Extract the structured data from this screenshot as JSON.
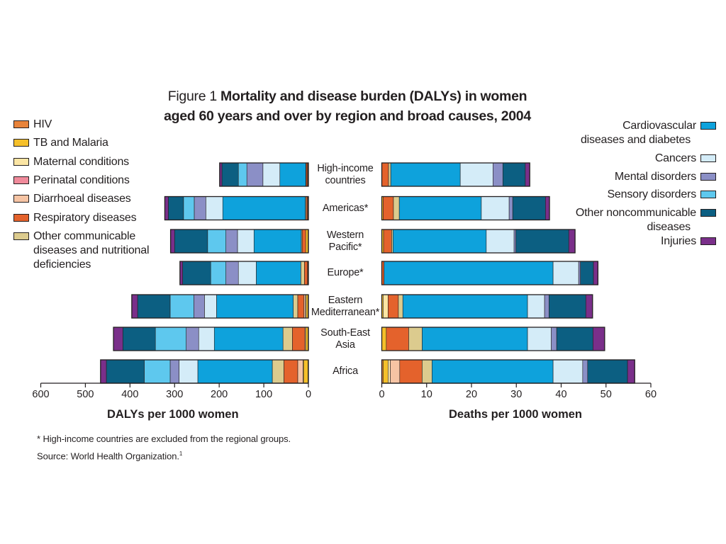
{
  "title": {
    "prefix": "Figure 1",
    "line1": "Mortality and disease burden (DALYs) in women",
    "line2": "aged 60 years and over by region and broad causes, 2004"
  },
  "legend_left": [
    {
      "label": "HIV",
      "color": "#e8833a"
    },
    {
      "label": "TB and Malaria",
      "color": "#f5c02a"
    },
    {
      "label": "Maternal conditions",
      "color": "#fbe5a4"
    },
    {
      "label": "Perinatal conditions",
      "color": "#f08a9b"
    },
    {
      "label": "Diarrhoeal diseases",
      "color": "#f6c4a4"
    },
    {
      "label": "Respiratory diseases",
      "color": "#e4622c"
    },
    {
      "label": "Other communicable diseases and nutritional deficiencies",
      "lines": [
        "Other communicable",
        "diseases and nutritional",
        "deficiencies"
      ],
      "color": "#dccb8e"
    }
  ],
  "legend_right": [
    {
      "label": "Cardiovascular diseases and diabetes",
      "lines": [
        "Cardiovascular",
        "diseases and diabetes"
      ],
      "color": "#0ea2dc"
    },
    {
      "label": "Cancers",
      "lines": [
        "Cancers"
      ],
      "color": "#d4ecf8"
    },
    {
      "label": "Mental disorders",
      "lines": [
        "Mental disorders"
      ],
      "color": "#8b8fc6"
    },
    {
      "label": "Sensory disorders",
      "lines": [
        "Sensory disorders"
      ],
      "color": "#5ec8ee"
    },
    {
      "label": "Other noncommunicable diseases",
      "lines": [
        "Other noncommunicable",
        "diseases"
      ],
      "color": "#0c5f82"
    },
    {
      "label": "Injuries",
      "lines": [
        "Injuries"
      ],
      "color": "#7a2f8a"
    }
  ],
  "chart_data": {
    "type": "bar",
    "orientation": "horizontal",
    "layout": "back-to-back stacked",
    "categories": [
      [
        "High-income",
        "countries"
      ],
      [
        "Americas*"
      ],
      [
        "Western",
        "Pacific*"
      ],
      [
        "Europe*"
      ],
      [
        "Eastern",
        "Mediterranean*"
      ],
      [
        "South-East",
        "Asia"
      ],
      [
        "Africa"
      ]
    ],
    "causes": [
      "HIV",
      "TB and Malaria",
      "Maternal conditions",
      "Perinatal conditions",
      "Diarrhoeal diseases",
      "Respiratory diseases",
      "Other communicable diseases and nutritional deficiencies",
      "Cardiovascular diseases and diabetes",
      "Cancers",
      "Mental disorders",
      "Sensory disorders",
      "Other noncommunicable diseases",
      "Injuries"
    ],
    "left_panel": {
      "xlabel": "DALYs per 1000 women",
      "xlim": [
        600,
        0
      ],
      "ticks": [
        600,
        500,
        400,
        300,
        200,
        100,
        0
      ],
      "series": [
        {
          "category": "High-income countries",
          "segments": [
            {
              "cause": "HIV",
              "value": 1
            },
            {
              "cause": "TB and Malaria",
              "value": 1
            },
            {
              "cause": "Respiratory diseases",
              "value": 3
            },
            {
              "cause": "Other communicable diseases and nutritional deficiencies",
              "value": 1
            },
            {
              "cause": "Cardiovascular diseases and diabetes",
              "value": 58
            },
            {
              "cause": "Cancers",
              "value": 38
            },
            {
              "cause": "Mental disorders",
              "value": 36
            },
            {
              "cause": "Sensory disorders",
              "value": 19
            },
            {
              "cause": "Other noncommunicable diseases",
              "value": 37
            },
            {
              "cause": "Injuries",
              "value": 5
            }
          ]
        },
        {
          "category": "Americas*",
          "segments": [
            {
              "cause": "HIV",
              "value": 1
            },
            {
              "cause": "TB and Malaria",
              "value": 1
            },
            {
              "cause": "Respiratory diseases",
              "value": 3
            },
            {
              "cause": "Other communicable diseases and nutritional deficiencies",
              "value": 2
            },
            {
              "cause": "Cardiovascular diseases and diabetes",
              "value": 185
            },
            {
              "cause": "Cancers",
              "value": 38
            },
            {
              "cause": "Mental disorders",
              "value": 26
            },
            {
              "cause": "Sensory disorders",
              "value": 24
            },
            {
              "cause": "Other noncommunicable diseases",
              "value": 34
            },
            {
              "cause": "Injuries",
              "value": 8
            }
          ]
        },
        {
          "category": "Western Pacific*",
          "segments": [
            {
              "cause": "HIV",
              "value": 1
            },
            {
              "cause": "TB and Malaria",
              "value": 5
            },
            {
              "cause": "Respiratory diseases",
              "value": 8
            },
            {
              "cause": "Other communicable diseases and nutritional deficiencies",
              "value": 2
            },
            {
              "cause": "Cardiovascular diseases and diabetes",
              "value": 106
            },
            {
              "cause": "Cancers",
              "value": 37
            },
            {
              "cause": "Mental disorders",
              "value": 26
            },
            {
              "cause": "Sensory disorders",
              "value": 41
            },
            {
              "cause": "Other noncommunicable diseases",
              "value": 74
            },
            {
              "cause": "Injuries",
              "value": 9
            }
          ]
        },
        {
          "category": "Europe*",
          "segments": [
            {
              "cause": "HIV",
              "value": 1
            },
            {
              "cause": "TB and Malaria",
              "value": 1
            },
            {
              "cause": "Respiratory diseases",
              "value": 7
            },
            {
              "cause": "Other communicable diseases and nutritional deficiencies",
              "value": 8
            },
            {
              "cause": "Cardiovascular diseases and diabetes",
              "value": 100
            },
            {
              "cause": "Cancers",
              "value": 40
            },
            {
              "cause": "Mental disorders",
              "value": 28
            },
            {
              "cause": "Sensory disorders",
              "value": 34
            },
            {
              "cause": "Other noncommunicable diseases",
              "value": 63
            },
            {
              "cause": "Injuries",
              "value": 6
            }
          ]
        },
        {
          "category": "Eastern Mediterranean*",
          "segments": [
            {
              "cause": "HIV",
              "value": 1
            },
            {
              "cause": "TB and Malaria",
              "value": 4
            },
            {
              "cause": "Maternal conditions",
              "value": 2
            },
            {
              "cause": "Diarrhoeal diseases",
              "value": 3
            },
            {
              "cause": "Respiratory diseases",
              "value": 14
            },
            {
              "cause": "Other communicable diseases and nutritional deficiencies",
              "value": 10
            },
            {
              "cause": "Cardiovascular diseases and diabetes",
              "value": 172
            },
            {
              "cause": "Cancers",
              "value": 27
            },
            {
              "cause": "Mental disorders",
              "value": 24
            },
            {
              "cause": "Sensory disorders",
              "value": 53
            },
            {
              "cause": "Other noncommunicable diseases",
              "value": 73
            },
            {
              "cause": "Injuries",
              "value": 13
            }
          ]
        },
        {
          "category": "South-East Asia",
          "segments": [
            {
              "cause": "HIV",
              "value": 1
            },
            {
              "cause": "TB and Malaria",
              "value": 5
            },
            {
              "cause": "Diarrhoeal diseases",
              "value": 2
            },
            {
              "cause": "Respiratory diseases",
              "value": 28
            },
            {
              "cause": "Other communicable diseases and nutritional deficiencies",
              "value": 21
            },
            {
              "cause": "Cardiovascular diseases and diabetes",
              "value": 154
            },
            {
              "cause": "Cancers",
              "value": 35
            },
            {
              "cause": "Mental disorders",
              "value": 28
            },
            {
              "cause": "Sensory disorders",
              "value": 69
            },
            {
              "cause": "Other noncommunicable diseases",
              "value": 73
            },
            {
              "cause": "Injuries",
              "value": 21
            }
          ]
        },
        {
          "category": "Africa",
          "segments": [
            {
              "cause": "HIV",
              "value": 1
            },
            {
              "cause": "TB and Malaria",
              "value": 10
            },
            {
              "cause": "Maternal conditions",
              "value": 1
            },
            {
              "cause": "Diarrhoeal diseases",
              "value": 12
            },
            {
              "cause": "Respiratory diseases",
              "value": 31
            },
            {
              "cause": "Other communicable diseases and nutritional deficiencies",
              "value": 26
            },
            {
              "cause": "Cardiovascular diseases and diabetes",
              "value": 167
            },
            {
              "cause": "Cancers",
              "value": 42
            },
            {
              "cause": "Mental disorders",
              "value": 20
            },
            {
              "cause": "Sensory disorders",
              "value": 58
            },
            {
              "cause": "Other noncommunicable diseases",
              "value": 85
            },
            {
              "cause": "Injuries",
              "value": 13
            }
          ]
        }
      ]
    },
    "right_panel": {
      "xlabel": "Deaths per 1000 women",
      "xlim": [
        0,
        60
      ],
      "ticks": [
        0,
        10,
        20,
        30,
        40,
        50,
        60
      ],
      "series": [
        {
          "category": "High-income countries",
          "segments": [
            {
              "cause": "Respiratory diseases",
              "value": 1.5
            },
            {
              "cause": "Other communicable diseases and nutritional deficiencies",
              "value": 0.5
            },
            {
              "cause": "Cardiovascular diseases and diabetes",
              "value": 15.5
            },
            {
              "cause": "Cancers",
              "value": 7.3
            },
            {
              "cause": "Mental disorders",
              "value": 2.2
            },
            {
              "cause": "Other noncommunicable diseases",
              "value": 5.0
            },
            {
              "cause": "Injuries",
              "value": 1.0
            }
          ]
        },
        {
          "category": "Americas*",
          "segments": [
            {
              "cause": "TB and Malaria",
              "value": 0.3
            },
            {
              "cause": "Respiratory diseases",
              "value": 2.3
            },
            {
              "cause": "Other communicable diseases and nutritional deficiencies",
              "value": 1.3
            },
            {
              "cause": "Cardiovascular diseases and diabetes",
              "value": 18.3
            },
            {
              "cause": "Cancers",
              "value": 6.2
            },
            {
              "cause": "Mental disorders",
              "value": 0.8
            },
            {
              "cause": "Other noncommunicable diseases",
              "value": 7.3
            },
            {
              "cause": "Injuries",
              "value": 0.9
            }
          ]
        },
        {
          "category": "Western Pacific*",
          "segments": [
            {
              "cause": "TB and Malaria",
              "value": 0.4
            },
            {
              "cause": "Respiratory diseases",
              "value": 1.8
            },
            {
              "cause": "Other communicable diseases and nutritional deficiencies",
              "value": 0.3
            },
            {
              "cause": "Cardiovascular diseases and diabetes",
              "value": 20.8
            },
            {
              "cause": "Cancers",
              "value": 6.2
            },
            {
              "cause": "Mental disorders",
              "value": 0.4
            },
            {
              "cause": "Other noncommunicable diseases",
              "value": 11.8
            },
            {
              "cause": "Injuries",
              "value": 1.4
            }
          ]
        },
        {
          "category": "Europe*",
          "segments": [
            {
              "cause": "Respiratory diseases",
              "value": 0.5
            },
            {
              "cause": "Cardiovascular diseases and diabetes",
              "value": 37.7
            },
            {
              "cause": "Cancers",
              "value": 5.7
            },
            {
              "cause": "Mental disorders",
              "value": 0.4
            },
            {
              "cause": "Other noncommunicable diseases",
              "value": 2.9
            },
            {
              "cause": "Injuries",
              "value": 1.0
            }
          ]
        },
        {
          "category": "Eastern Mediterranean*",
          "segments": [
            {
              "cause": "TB and Malaria",
              "value": 0.3
            },
            {
              "cause": "Maternal conditions",
              "value": 1.1
            },
            {
              "cause": "Respiratory diseases",
              "value": 2.3
            },
            {
              "cause": "Other communicable diseases and nutritional deficiencies",
              "value": 1.0
            },
            {
              "cause": "Cardiovascular diseases and diabetes",
              "value": 27.8
            },
            {
              "cause": "Cancers",
              "value": 3.8
            },
            {
              "cause": "Mental disorders",
              "value": 1.0
            },
            {
              "cause": "Other noncommunicable diseases",
              "value": 8.2
            },
            {
              "cause": "Injuries",
              "value": 1.5
            }
          ]
        },
        {
          "category": "South-East Asia",
          "segments": [
            {
              "cause": "TB and Malaria",
              "value": 1.0
            },
            {
              "cause": "Respiratory diseases",
              "value": 5.0
            },
            {
              "cause": "Other communicable diseases and nutritional deficiencies",
              "value": 3.0
            },
            {
              "cause": "Cardiovascular diseases and diabetes",
              "value": 23.5
            },
            {
              "cause": "Cancers",
              "value": 5.3
            },
            {
              "cause": "Mental disorders",
              "value": 1.2
            },
            {
              "cause": "Other noncommunicable diseases",
              "value": 8.1
            },
            {
              "cause": "Injuries",
              "value": 2.6
            }
          ]
        },
        {
          "category": "Africa",
          "segments": [
            {
              "cause": "HIV",
              "value": 0.3
            },
            {
              "cause": "TB and Malaria",
              "value": 1.1
            },
            {
              "cause": "Maternal conditions",
              "value": 0.5
            },
            {
              "cause": "Diarrhoeal diseases",
              "value": 2.1
            },
            {
              "cause": "Respiratory diseases",
              "value": 5.0
            },
            {
              "cause": "Other communicable diseases and nutritional deficiencies",
              "value": 2.2
            },
            {
              "cause": "Cardiovascular diseases and diabetes",
              "value": 27.0
            },
            {
              "cause": "Cancers",
              "value": 6.6
            },
            {
              "cause": "Mental disorders",
              "value": 1.1
            },
            {
              "cause": "Other noncommunicable diseases",
              "value": 8.9
            },
            {
              "cause": "Injuries",
              "value": 1.6
            }
          ]
        }
      ]
    }
  },
  "footnotes": {
    "note": "* High-income countries are excluded from the regional groups.",
    "source": "Source: World Health Organization.",
    "source_sup": "1"
  }
}
